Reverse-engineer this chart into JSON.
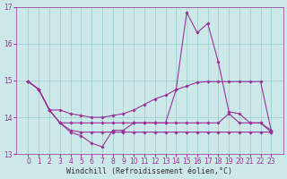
{
  "xlabel": "Windchill (Refroidissement éolien,°C)",
  "background_color": "#cce8e8",
  "grid_color": "#99cccc",
  "line_color": "#993399",
  "x": [
    0,
    1,
    2,
    3,
    4,
    5,
    6,
    7,
    8,
    9,
    10,
    11,
    12,
    13,
    14,
    15,
    16,
    17,
    18,
    19,
    20,
    21,
    22,
    23
  ],
  "line1": [
    14.97,
    14.76,
    14.2,
    13.85,
    13.6,
    13.5,
    13.3,
    13.2,
    13.65,
    13.65,
    13.85,
    13.85,
    13.85,
    13.85,
    14.75,
    16.85,
    16.3,
    16.55,
    15.5,
    14.15,
    14.1,
    13.85,
    13.85,
    13.6
  ],
  "line2": [
    14.97,
    14.76,
    14.2,
    14.2,
    14.1,
    14.05,
    14.0,
    14.0,
    14.05,
    14.1,
    14.2,
    14.35,
    14.5,
    14.6,
    14.75,
    14.85,
    14.95,
    14.97,
    14.97,
    14.97,
    14.97,
    14.97,
    14.97,
    13.65
  ],
  "line3": [
    14.97,
    14.76,
    14.2,
    13.85,
    13.85,
    13.85,
    13.85,
    13.85,
    13.85,
    13.85,
    13.85,
    13.85,
    13.85,
    13.85,
    13.85,
    13.85,
    13.85,
    13.85,
    13.85,
    14.1,
    13.85,
    13.85,
    13.85,
    13.65
  ],
  "line4": [
    14.97,
    14.76,
    14.2,
    13.85,
    13.65,
    13.6,
    13.6,
    13.6,
    13.6,
    13.6,
    13.6,
    13.6,
    13.6,
    13.6,
    13.6,
    13.6,
    13.6,
    13.6,
    13.6,
    13.6,
    13.6,
    13.6,
    13.6,
    13.6
  ],
  "ylim": [
    13.0,
    17.0
  ],
  "yticks": [
    13,
    14,
    15,
    16,
    17
  ],
  "xticks": [
    0,
    1,
    2,
    3,
    4,
    5,
    6,
    7,
    8,
    9,
    10,
    11,
    12,
    13,
    14,
    15,
    16,
    17,
    18,
    19,
    20,
    21,
    22,
    23
  ],
  "tick_fontsize": 5.5,
  "xlabel_fontsize": 6.0,
  "lw": 0.8,
  "ms": 1.8
}
